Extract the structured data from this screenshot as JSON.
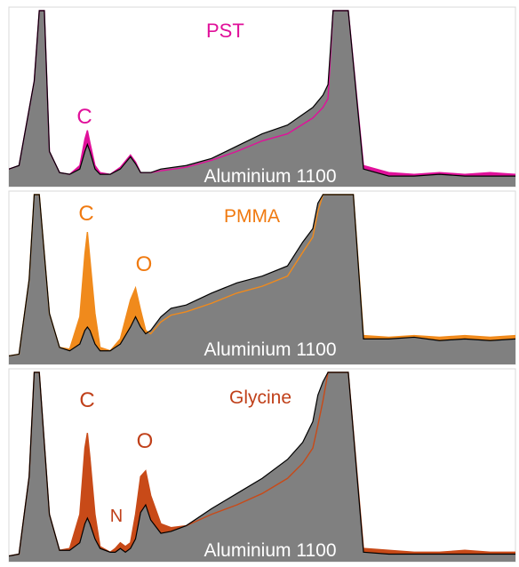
{
  "chart_data": [
    {
      "type": "area",
      "title": "PST",
      "annotation": "Aluminium 1100",
      "peak_labels": [
        "C"
      ],
      "colors": {
        "fill": "#808080",
        "outline": "#000000",
        "overlay": "#e0109a",
        "label": "#e0109a"
      },
      "x": [
        0,
        2,
        5,
        6,
        6.5,
        7,
        8,
        10,
        12,
        14,
        15,
        15.5,
        16,
        17,
        18,
        20,
        22,
        24,
        25,
        26,
        28,
        30,
        35,
        40,
        45,
        50,
        55,
        60,
        62,
        63,
        64,
        65,
        66,
        67,
        70,
        75,
        80,
        85,
        90,
        95,
        100
      ],
      "series": [
        {
          "role": "substrate",
          "values": [
            0.1,
            0.12,
            0.6,
            1.0,
            1.0,
            1.0,
            0.2,
            0.08,
            0.07,
            0.1,
            0.2,
            0.24,
            0.2,
            0.1,
            0.07,
            0.07,
            0.1,
            0.17,
            0.13,
            0.08,
            0.08,
            0.1,
            0.12,
            0.16,
            0.23,
            0.3,
            0.35,
            0.45,
            0.52,
            0.58,
            1.0,
            1.0,
            1.0,
            1.0,
            0.1,
            0.06,
            0.06,
            0.07,
            0.06,
            0.06,
            0.06
          ]
        },
        {
          "role": "sample",
          "values": [
            0.1,
            0.12,
            0.6,
            1.0,
            1.0,
            1.0,
            0.2,
            0.08,
            0.07,
            0.12,
            0.27,
            0.32,
            0.25,
            0.12,
            0.08,
            0.07,
            0.11,
            0.18,
            0.14,
            0.08,
            0.08,
            0.09,
            0.11,
            0.15,
            0.2,
            0.26,
            0.3,
            0.39,
            0.45,
            0.5,
            1.0,
            1.0,
            1.0,
            1.0,
            0.12,
            0.08,
            0.07,
            0.08,
            0.07,
            0.08,
            0.07
          ]
        }
      ],
      "ylim": [
        0,
        1
      ]
    },
    {
      "type": "area",
      "title": "PMMA",
      "annotation": "Aluminium 1100",
      "peak_labels": [
        "C",
        "O"
      ],
      "colors": {
        "fill": "#808080",
        "outline": "#000000",
        "overlay": "#f08a1c",
        "label": "#f07a10"
      },
      "x": [
        0,
        2,
        4,
        5,
        6,
        8,
        10,
        12,
        14,
        15,
        15.5,
        16,
        17,
        18,
        20,
        22,
        24,
        25,
        26,
        27,
        28,
        30,
        32,
        35,
        40,
        45,
        50,
        55,
        58,
        60,
        61,
        62,
        63,
        64,
        65,
        66,
        67,
        68,
        70,
        75,
        80,
        85,
        90,
        95,
        100
      ],
      "series": [
        {
          "role": "substrate",
          "values": [
            0.05,
            0.06,
            0.5,
            1.0,
            1.0,
            0.3,
            0.1,
            0.08,
            0.12,
            0.2,
            0.22,
            0.2,
            0.12,
            0.08,
            0.08,
            0.12,
            0.22,
            0.28,
            0.22,
            0.18,
            0.2,
            0.28,
            0.33,
            0.35,
            0.42,
            0.48,
            0.52,
            0.58,
            0.72,
            0.8,
            0.95,
            1.0,
            1.0,
            1.0,
            1.0,
            1.0,
            1.0,
            1.0,
            0.15,
            0.15,
            0.16,
            0.14,
            0.15,
            0.14,
            0.15
          ]
        },
        {
          "role": "sample",
          "values": [
            0.05,
            0.06,
            0.5,
            1.0,
            1.0,
            0.3,
            0.1,
            0.09,
            0.28,
            0.65,
            0.78,
            0.62,
            0.3,
            0.1,
            0.08,
            0.15,
            0.38,
            0.45,
            0.32,
            0.2,
            0.18,
            0.25,
            0.29,
            0.31,
            0.36,
            0.42,
            0.46,
            0.52,
            0.66,
            0.75,
            0.9,
            1.0,
            1.0,
            1.0,
            1.0,
            1.0,
            1.0,
            1.0,
            0.17,
            0.16,
            0.17,
            0.16,
            0.17,
            0.16,
            0.17
          ]
        }
      ],
      "ylim": [
        0,
        1
      ]
    },
    {
      "type": "area",
      "title": "Glycine",
      "annotation": "Aluminium 1100",
      "peak_labels": [
        "C",
        "N",
        "O"
      ],
      "colors": {
        "fill": "#808080",
        "outline": "#000000",
        "overlay": "#c84a18",
        "label": "#c0401a"
      },
      "x": [
        0,
        2,
        4,
        5,
        6,
        8,
        10,
        12,
        14,
        15,
        15.5,
        16,
        17,
        18,
        20,
        21,
        22,
        23,
        24,
        25,
        26,
        27,
        28,
        30,
        32,
        35,
        40,
        45,
        50,
        55,
        58,
        60,
        61,
        62,
        63,
        64,
        65,
        66,
        67,
        70,
        75,
        80,
        85,
        90,
        95,
        100
      ],
      "series": [
        {
          "role": "substrate",
          "values": [
            0.03,
            0.04,
            0.45,
            1.0,
            1.0,
            0.25,
            0.06,
            0.06,
            0.1,
            0.2,
            0.23,
            0.2,
            0.12,
            0.07,
            0.05,
            0.05,
            0.07,
            0.05,
            0.07,
            0.12,
            0.26,
            0.3,
            0.22,
            0.15,
            0.16,
            0.19,
            0.28,
            0.36,
            0.44,
            0.54,
            0.63,
            0.74,
            0.88,
            0.95,
            1.0,
            1.0,
            1.0,
            1.0,
            1.0,
            0.05,
            0.04,
            0.04,
            0.04,
            0.04,
            0.04,
            0.04
          ]
        },
        {
          "role": "sample",
          "values": [
            0.03,
            0.04,
            0.45,
            1.0,
            1.0,
            0.25,
            0.06,
            0.07,
            0.25,
            0.6,
            0.68,
            0.55,
            0.25,
            0.08,
            0.05,
            0.07,
            0.1,
            0.08,
            0.1,
            0.25,
            0.45,
            0.48,
            0.35,
            0.2,
            0.18,
            0.19,
            0.25,
            0.3,
            0.36,
            0.44,
            0.52,
            0.6,
            0.72,
            0.85,
            1.0,
            1.0,
            1.0,
            1.0,
            1.0,
            0.07,
            0.06,
            0.05,
            0.05,
            0.06,
            0.05,
            0.05
          ]
        }
      ],
      "ylim": [
        0,
        1
      ]
    }
  ]
}
